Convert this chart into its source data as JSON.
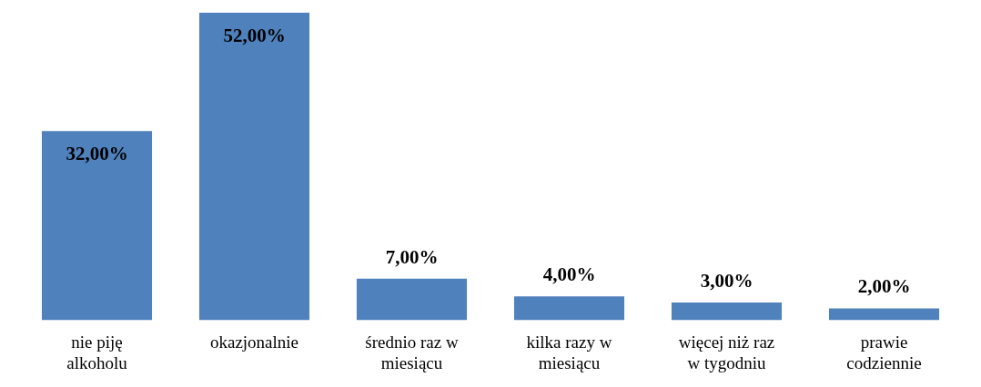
{
  "chart_data": {
    "type": "bar",
    "categories": [
      "nie piję alkoholu",
      "okazjonalnie",
      "średnio raz w miesiącu",
      "kilka razy w miesiącu",
      "więcej niż raz w tygodniu",
      "prawie codziennie"
    ],
    "values": [
      32,
      52,
      7,
      4,
      3,
      2
    ],
    "value_labels": [
      "32,00%",
      "52,00%",
      "7,00%",
      "4,00%",
      "3,00%",
      "2,00%"
    ],
    "color": "#4f81bd",
    "grid": false,
    "legend": false
  }
}
